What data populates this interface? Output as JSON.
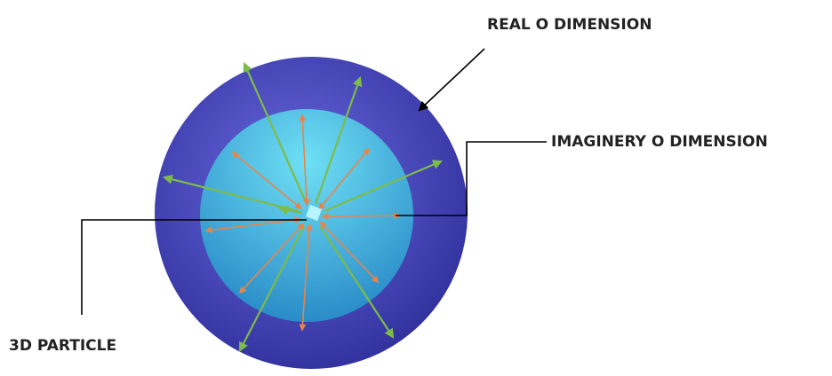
{
  "labels": {
    "real": "REAL O DIMENSION",
    "imaginary": "IMAGINERY O DIMENSION",
    "particle": "3D PARTICLE"
  }
}
